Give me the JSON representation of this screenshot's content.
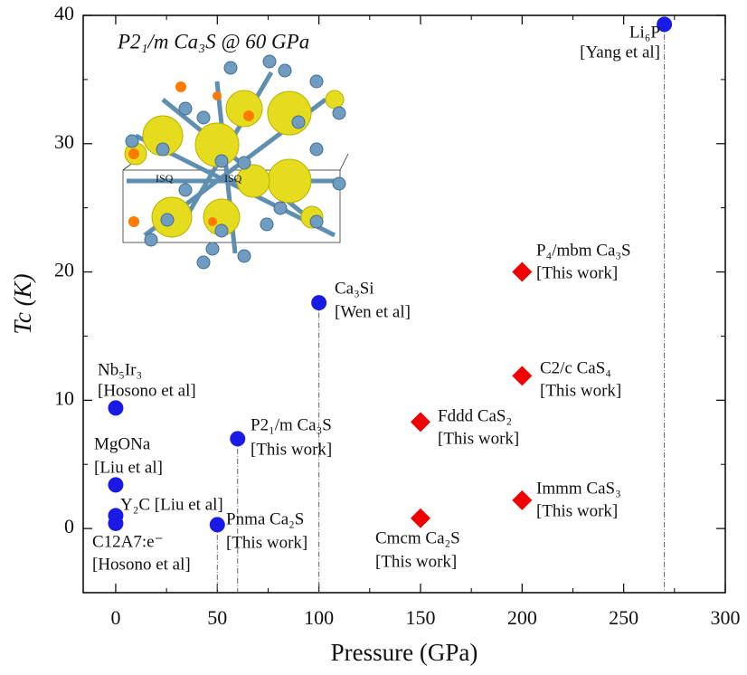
{
  "chart_data": {
    "type": "scatter",
    "x_label": "Pressure (GPa)",
    "y_label": "Tc (K)",
    "xlim": [
      -16,
      300
    ],
    "ylim": [
      -5,
      40
    ],
    "xticks": [
      0,
      50,
      100,
      150,
      200,
      250,
      300
    ],
    "yticks": [
      0,
      10,
      20,
      30,
      40
    ],
    "inset_title": "P2₁/m Ca₃S @ 60 GPa",
    "inset_labels": [
      "ISQ",
      "ISQ"
    ],
    "series": [
      {
        "color": "#1a1ae6",
        "marker": "circle",
        "x": [
          270,
          100,
          0,
          60,
          0,
          0,
          0,
          50
        ],
        "values": [
          39.3,
          17.6,
          9.4,
          7.0,
          3.4,
          1.0,
          0.4,
          0.3
        ],
        "labels": [
          [
            "Li₆P",
            "[Yang et al]"
          ],
          [
            "Ca₃Si",
            "[Wen et al]"
          ],
          [
            "Nb₅Ir₃",
            "[Hosono et al]"
          ],
          [
            "P2₁/m Ca₃S",
            "[This work]"
          ],
          [
            "MgONa",
            "[Liu et al]"
          ],
          [
            "Y₂C [Liu et al]"
          ],
          [
            "C12A7:e⁻",
            "[Hosono et al]"
          ],
          [
            "Pnma Ca₂S",
            "[This work]"
          ]
        ],
        "droplines": [
          true,
          true,
          false,
          true,
          false,
          false,
          false,
          true
        ]
      },
      {
        "color": "#f00000",
        "marker": "diamond",
        "x": [
          200,
          200,
          150,
          200,
          150
        ],
        "values": [
          20,
          11.9,
          8.3,
          2.2,
          0.8
        ],
        "labels": [
          [
            "P₄/mbm Ca₃S",
            "[This work]"
          ],
          [
            "C2/c CaS₄",
            "[This work]"
          ],
          [
            "Fddd CaS₂",
            "[This work]"
          ],
          [
            "Immm CaS₃",
            "[This work]"
          ],
          [
            "Cmcm Ca₂S",
            "[This work]"
          ]
        ]
      }
    ]
  }
}
